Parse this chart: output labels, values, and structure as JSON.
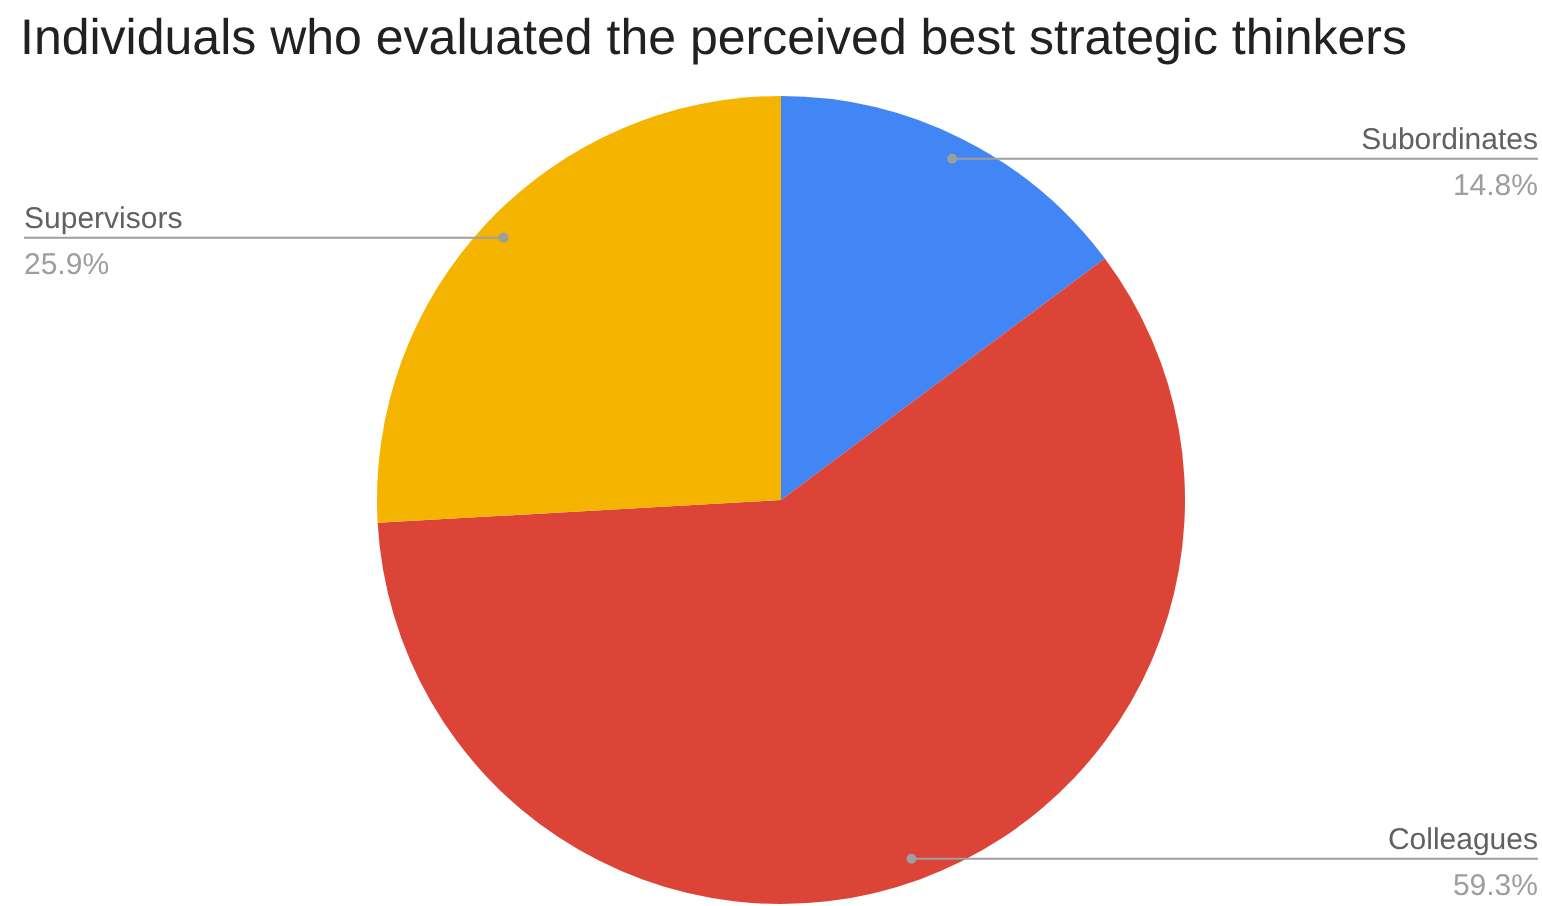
{
  "chart_data": {
    "type": "pie",
    "title": "Individuals who evaluated the perceived best strategic thinkers",
    "categories": [
      "Subordinates",
      "Colleagues",
      "Supervisors"
    ],
    "values": [
      14.8,
      59.3,
      25.9
    ],
    "colors": [
      "#4285f4",
      "#db4437",
      "#f4b400"
    ],
    "value_labels": [
      "14.8%",
      "59.3%",
      "25.9%"
    ]
  }
}
